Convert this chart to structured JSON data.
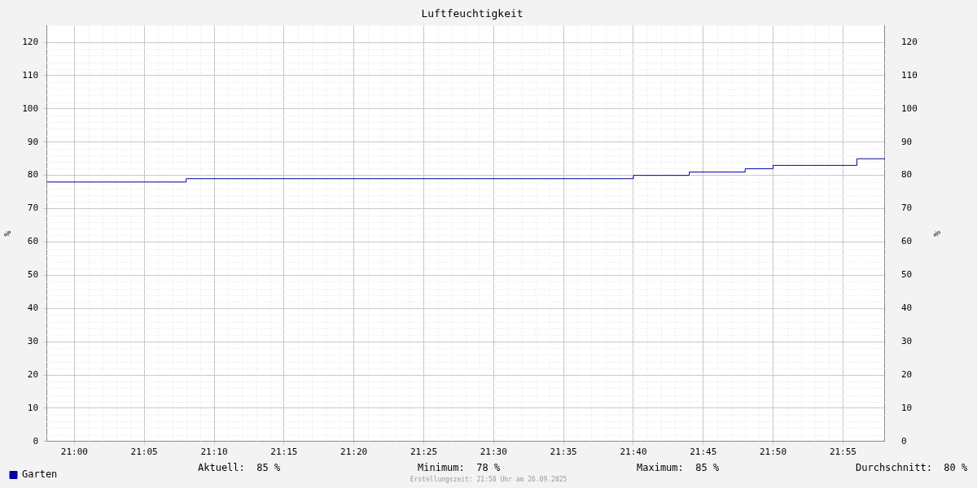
{
  "chart_data": {
    "type": "step",
    "title": "Luftfeuchtigkeit",
    "ylabel": "%",
    "y2label": "%",
    "x": [
      20.9667,
      21.1333,
      21.6667,
      21.7333,
      21.8,
      21.8333,
      21.9333,
      21.9667
    ],
    "series": [
      {
        "name": "Garten",
        "color": "#0000aa",
        "values": [
          78,
          79,
          80,
          81,
          82,
          83,
          85,
          85
        ]
      }
    ],
    "xlim": [
      20.9667,
      21.9667
    ],
    "xticks": [
      {
        "value": 21,
        "label": "21:00"
      },
      {
        "value": 21.0833,
        "label": "21:05"
      },
      {
        "value": 21.1667,
        "label": "21:10"
      },
      {
        "value": 21.25,
        "label": "21:15"
      },
      {
        "value": 21.3333,
        "label": "21:20"
      },
      {
        "value": 21.4167,
        "label": "21:25"
      },
      {
        "value": 21.5,
        "label": "21:30"
      },
      {
        "value": 21.5833,
        "label": "21:35"
      },
      {
        "value": 21.6667,
        "label": "21:40"
      },
      {
        "value": 21.75,
        "label": "21:45"
      },
      {
        "value": 21.8333,
        "label": "21:50"
      },
      {
        "value": 21.9167,
        "label": "21:55"
      }
    ],
    "ylim": [
      0,
      125
    ],
    "yticks": [
      0,
      10,
      20,
      30,
      40,
      50,
      60,
      70,
      80,
      90,
      100,
      110,
      120
    ],
    "y2lim": [
      0,
      125
    ],
    "y2ticks": [
      0,
      10,
      20,
      30,
      40,
      50,
      60,
      70,
      80,
      90,
      100,
      110,
      120
    ],
    "grid": true,
    "legend": "bottom left",
    "marker": "none",
    "line_style": "solid",
    "annotations": [
      "Aktuell:  85 %",
      "Minimum:  78 %",
      "Maximum:  85 %",
      "Durchschnitt:  80 %",
      "Erstellungszeit: 21:58 Uhr am 26.09.2025"
    ]
  }
}
